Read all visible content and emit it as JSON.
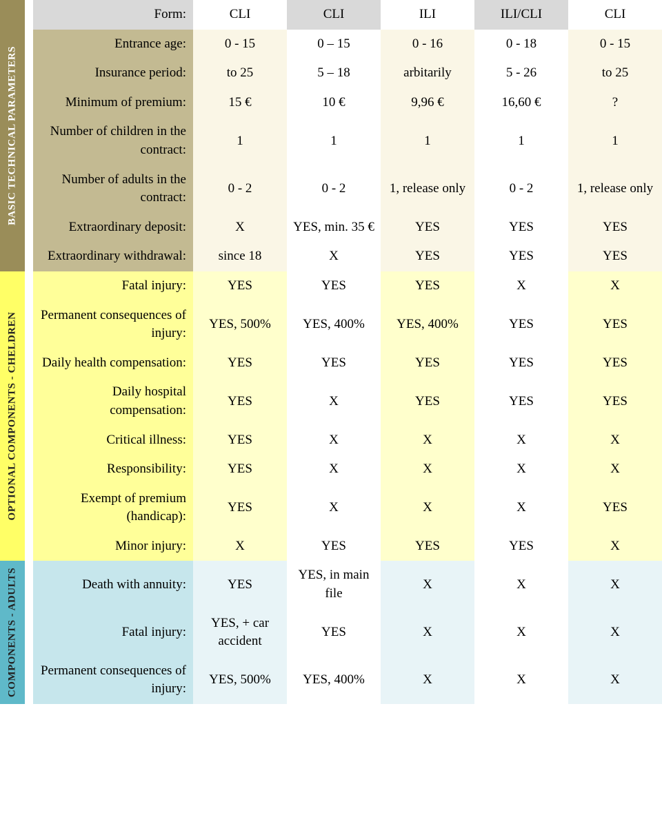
{
  "sections": {
    "basic": {
      "side_label": "BASIC TECHNICAL PARAMETERS"
    },
    "children": {
      "side_label": "OPTIONAL COMPONENTS - CHELDREN"
    },
    "adults": {
      "side_label": "COMPONENTS - ADULTS"
    }
  },
  "header": {
    "label": "Form:",
    "cols": [
      "CLI",
      "CLI",
      "ILI",
      "ILI/CLI",
      "CLI"
    ]
  },
  "basic_rows": [
    {
      "label": "Entrance age:",
      "vals": [
        "0 - 15",
        "0 – 15",
        "0 - 16",
        "0 - 18",
        "0 - 15"
      ]
    },
    {
      "label": "Insurance period:",
      "vals": [
        "to 25",
        "5 – 18",
        "arbitarily",
        "5 - 26",
        "to 25"
      ]
    },
    {
      "label": "Minimum of premium:",
      "vals": [
        "15 €",
        "10 €",
        "9,96 €",
        "16,60 €",
        "?"
      ]
    },
    {
      "label": "Number of children in the contract:",
      "vals": [
        "1",
        "1",
        "1",
        "1",
        "1"
      ]
    },
    {
      "label": "Number of adults in the contract:",
      "vals": [
        "0 - 2",
        "0 - 2",
        "1, release only",
        "0 - 2",
        "1, release only"
      ]
    },
    {
      "label": "Extraordinary deposit:",
      "vals": [
        "X",
        "YES, min. 35 €",
        "YES",
        "YES",
        "YES"
      ]
    },
    {
      "label": "Extraordinary withdrawal:",
      "vals": [
        "since 18",
        "X",
        "YES",
        "YES",
        "YES"
      ]
    }
  ],
  "children_rows": [
    {
      "label": "Fatal injury:",
      "vals": [
        "YES",
        "YES",
        "YES",
        "X",
        "X"
      ]
    },
    {
      "label": "Permanent consequences of injury:",
      "vals": [
        "YES, 500%",
        "YES, 400%",
        "YES, 400%",
        "YES",
        "YES"
      ]
    },
    {
      "label": "Daily health compensation:",
      "vals": [
        "YES",
        "YES",
        "YES",
        "YES",
        "YES"
      ]
    },
    {
      "label": "Daily hospital compensation:",
      "vals": [
        "YES",
        "X",
        "YES",
        "YES",
        "YES"
      ]
    },
    {
      "label": "Critical illness:",
      "vals": [
        "YES",
        "X",
        "X",
        "X",
        "X"
      ]
    },
    {
      "label": "Responsibility:",
      "vals": [
        "YES",
        "X",
        "X",
        "X",
        "X"
      ]
    },
    {
      "label": "Exempt of premium (handicap):",
      "vals": [
        "YES",
        "X",
        "X",
        "X",
        "YES"
      ]
    },
    {
      "label": "Minor injury:",
      "vals": [
        "X",
        "YES",
        "YES",
        "YES",
        "X"
      ]
    }
  ],
  "adults_rows": [
    {
      "label": "Death with annuity:",
      "vals": [
        "YES",
        "YES, in main file",
        "X",
        "X",
        "X"
      ]
    },
    {
      "label": "Fatal injury:",
      "vals": [
        "YES, + car accident",
        "YES",
        "X",
        "X",
        "X"
      ]
    },
    {
      "label": "Permanent consequences of injury:",
      "vals": [
        "YES, 500%",
        "YES, 400%",
        "X",
        "X",
        "X"
      ]
    }
  ],
  "colors": {
    "side_olive": "#9a8d59",
    "side_yellow": "#ffff66",
    "side_teal": "#5fb9c9",
    "lbl_gray": "#d9d9d9",
    "lbl_olive": "#c3ba92",
    "lbl_yellow": "#ffff99",
    "lbl_teal": "#c6e6ec",
    "v_gray": "#d9d9d9",
    "v_white": "#ffffff",
    "v_cream": "#faf6e6",
    "v_yell": "#ffffcc",
    "v_teal_lt": "#e8f4f7"
  },
  "typography": {
    "font_family": "Times New Roman",
    "cell_fontsize": 19,
    "side_fontsize": 15
  }
}
